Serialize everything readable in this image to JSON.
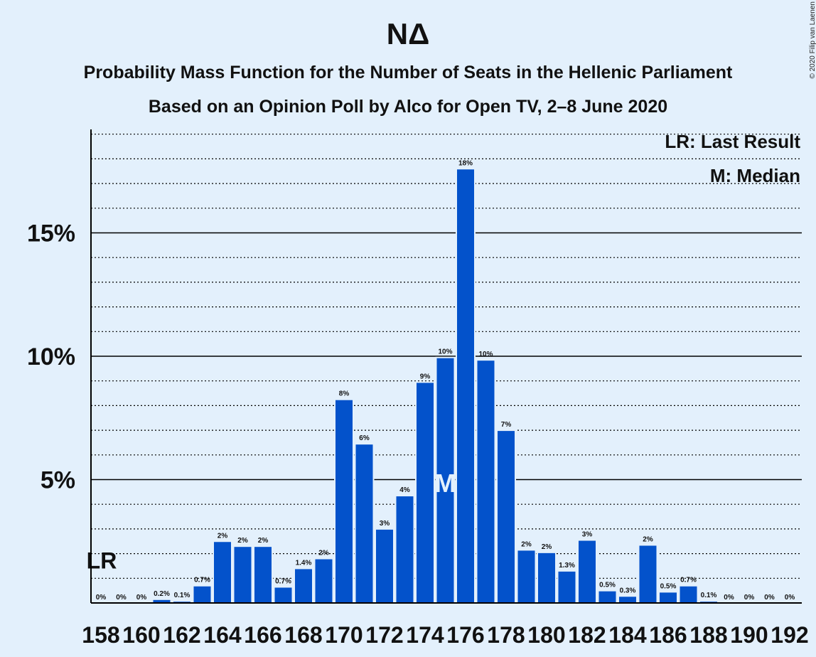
{
  "chart_data": {
    "type": "bar",
    "title": "NΔ",
    "subtitle": "Probability Mass Function for the Number of Seats in the Hellenic Parliament",
    "subtitle2": "Based on an Opinion Poll by Alco for Open TV, 2–8 June 2020",
    "copyright": "© 2020 Filip van Laenen",
    "legend": [
      "LR: Last Result",
      "M: Median"
    ],
    "legend_position": "top-right",
    "x": [
      158,
      159,
      160,
      161,
      162,
      163,
      164,
      165,
      166,
      167,
      168,
      169,
      170,
      171,
      172,
      173,
      174,
      175,
      176,
      177,
      178,
      179,
      180,
      181,
      182,
      183,
      184,
      185,
      186,
      187,
      188,
      189,
      190,
      191,
      192
    ],
    "values": [
      0,
      0,
      0,
      0.15,
      0.08,
      0.7,
      2.5,
      2.3,
      2.3,
      0.65,
      1.4,
      1.8,
      8.25,
      6.45,
      3.0,
      4.35,
      8.95,
      9.95,
      17.6,
      9.85,
      7.0,
      2.15,
      2.05,
      1.3,
      2.55,
      0.5,
      0.28,
      2.35,
      0.45,
      0.7,
      0.08,
      0,
      0,
      0,
      0
    ],
    "labels": [
      "0%",
      "0%",
      "0%",
      "0.2%",
      "0.1%",
      "0.7%",
      "2%",
      "2%",
      "2%",
      "0.7%",
      "1.4%",
      "2%",
      "8%",
      "6%",
      "3%",
      "4%",
      "9%",
      "10%",
      "18%",
      "10%",
      "7%",
      "2%",
      "2%",
      "1.3%",
      "3%",
      "0.5%",
      "0.3%",
      "2%",
      "0.5%",
      "0.7%",
      "0.1%",
      "0%",
      "0%",
      "0%",
      "0%"
    ],
    "xtick_labels": [
      "158",
      "160",
      "162",
      "164",
      "166",
      "168",
      "170",
      "172",
      "174",
      "176",
      "178",
      "180",
      "182",
      "184",
      "186",
      "188",
      "190",
      "192"
    ],
    "ytick_labels": [
      "5%",
      "10%",
      "15%"
    ],
    "yticks": [
      5,
      10,
      15
    ],
    "ylim": [
      0,
      19.2
    ],
    "last_result_seat": 158,
    "last_result_marker": "LR",
    "median_seat": 175,
    "median_marker": "M",
    "grid": true,
    "colors": {
      "bar": "#0352cb",
      "background": "#e3f0fc",
      "axis": "#000000"
    }
  }
}
